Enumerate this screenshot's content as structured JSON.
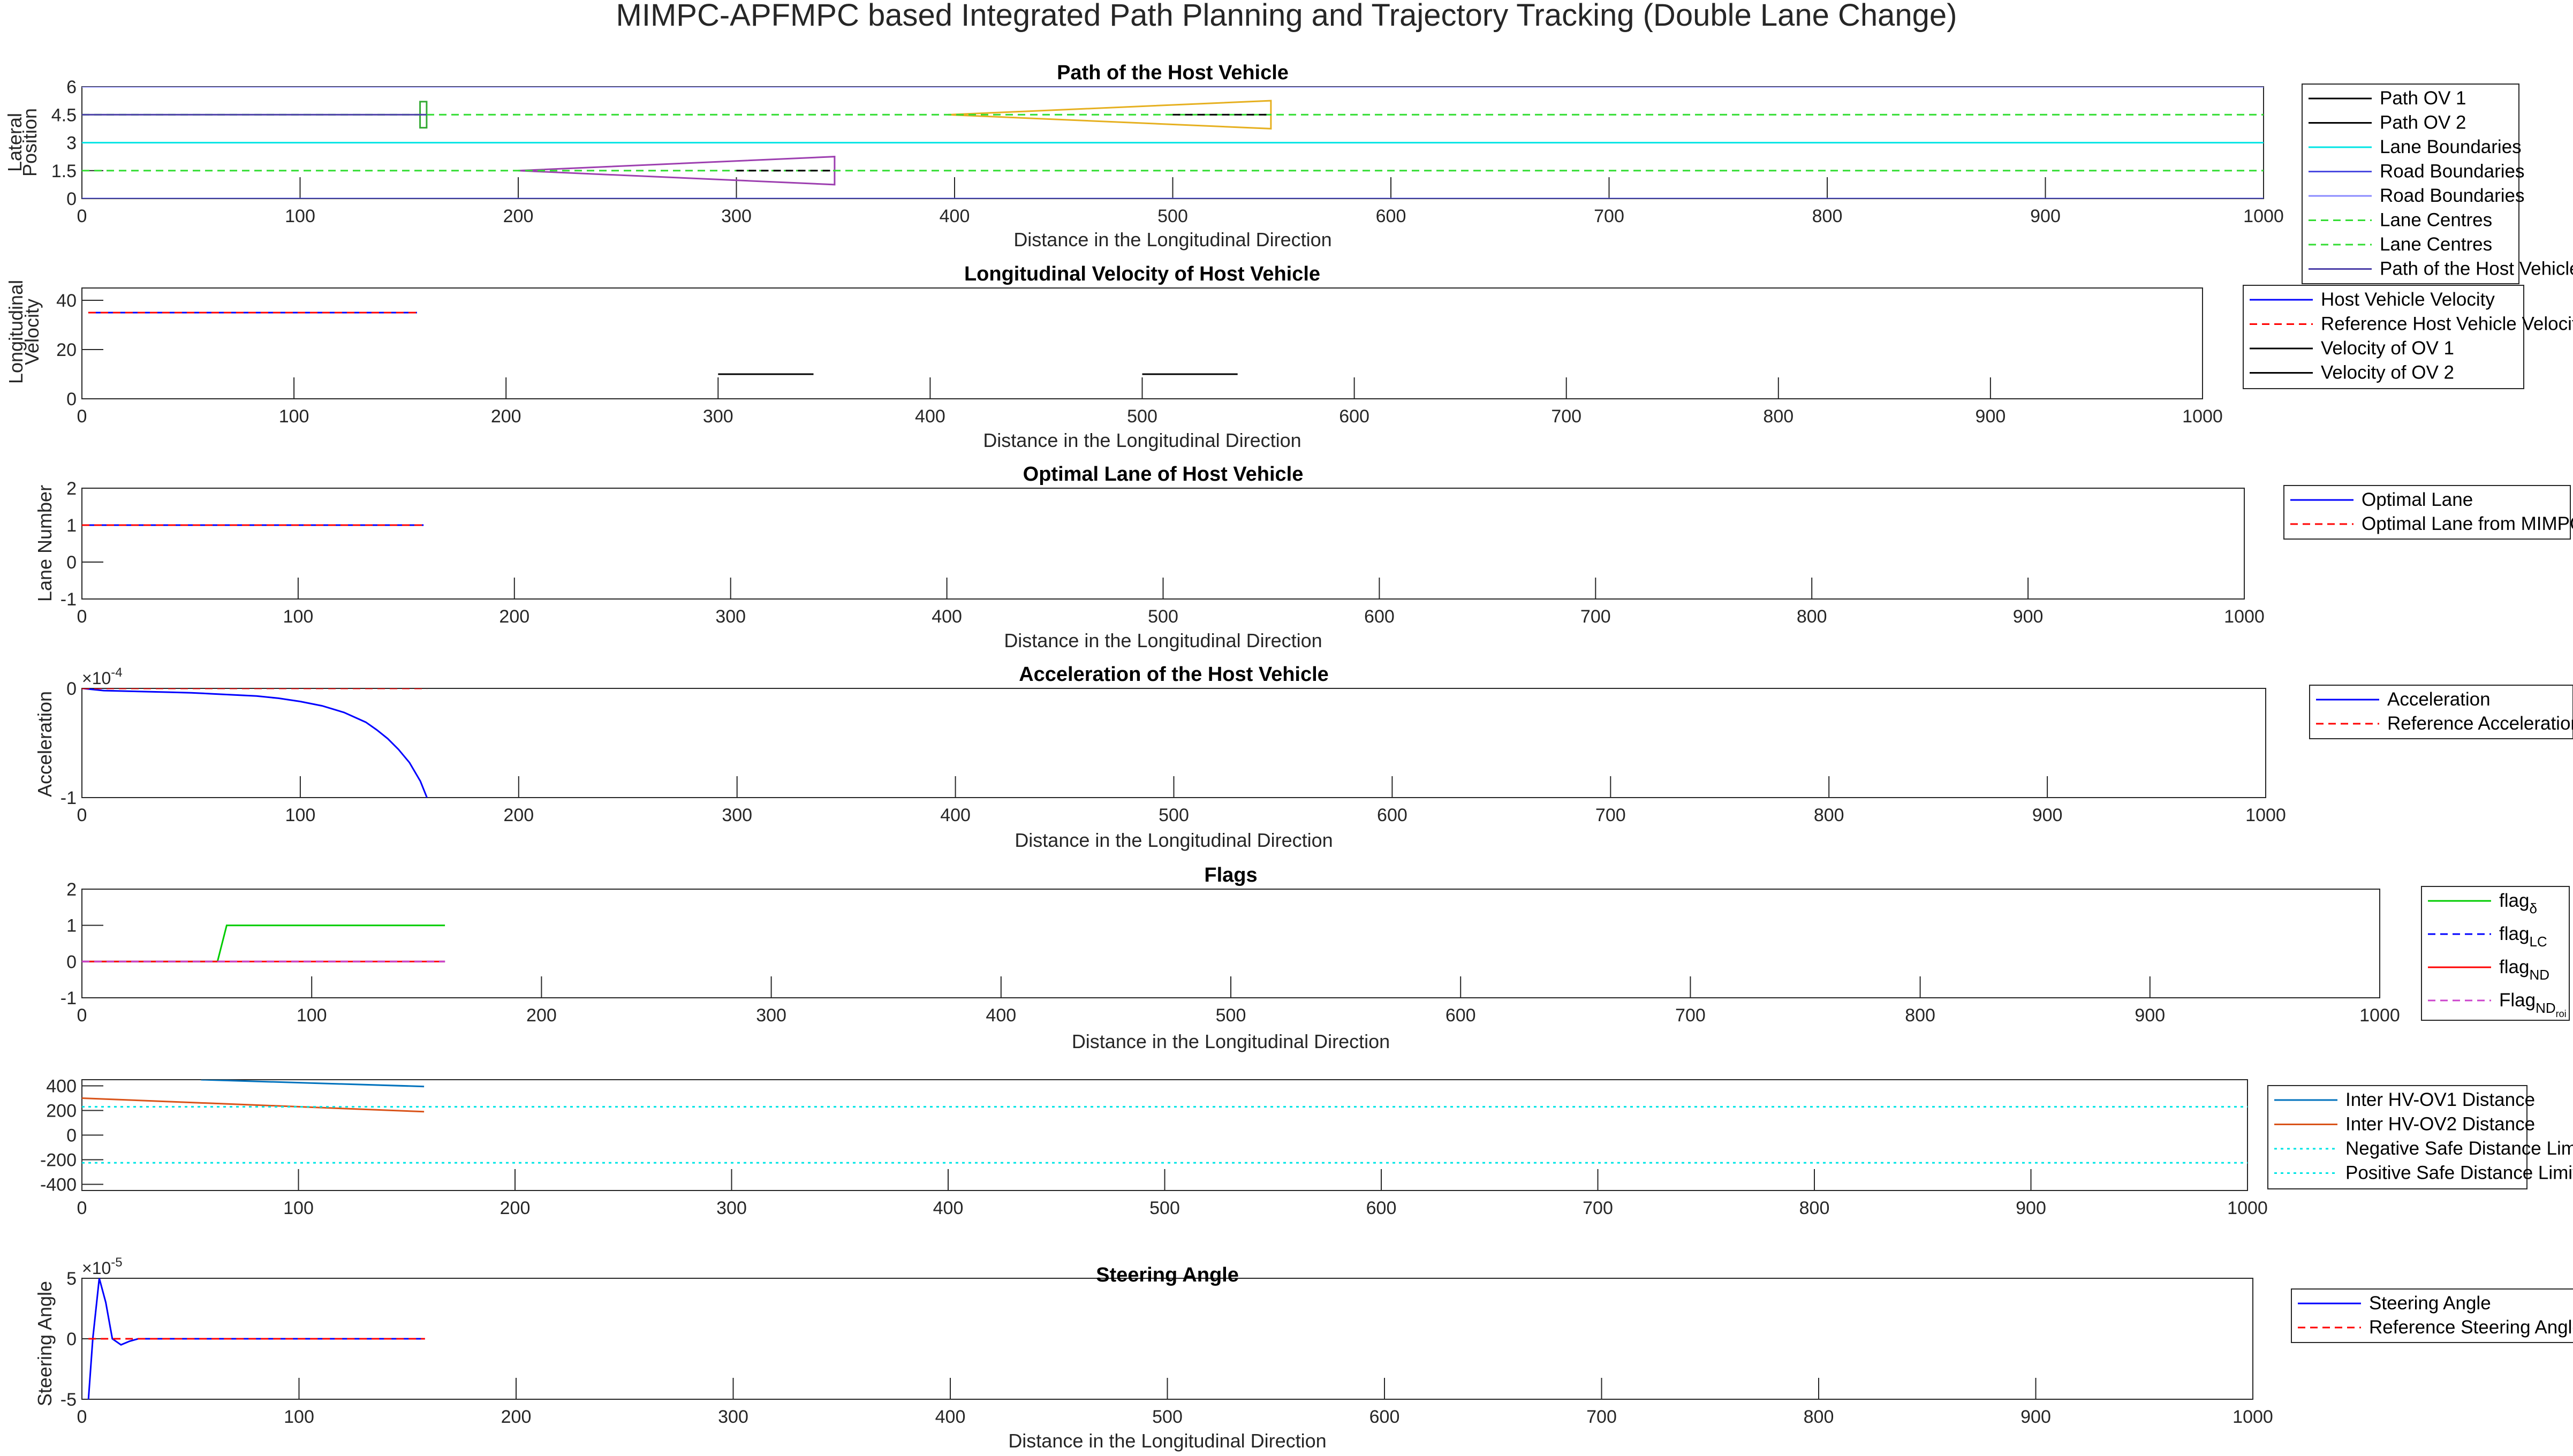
{
  "figure_title": "MIMPC-APFMPC based Integrated Path Planning and Trajectory Tracking (Double Lane Change)",
  "chart_data": [
    {
      "type": "line",
      "title": "Path of the Host Vehicle",
      "xlabel": "Distance in the Longitudinal Direction",
      "ylabel": [
        "Lateral",
        "Position"
      ],
      "xlim": [
        0,
        1000
      ],
      "ylim": [
        0,
        6
      ],
      "xticks": [
        0,
        100,
        200,
        300,
        400,
        500,
        600,
        700,
        800,
        900,
        1000
      ],
      "yticks": [
        0,
        1.5,
        3,
        4.5,
        6
      ],
      "ytick_labels": [
        "0",
        "1.5",
        "3",
        "4.5",
        "6"
      ],
      "legend_position": "right",
      "legend": [
        {
          "name": "Path OV 1",
          "color": "#000000",
          "dash": "solid"
        },
        {
          "name": "Path OV 2",
          "color": "#000000",
          "dash": "solid"
        },
        {
          "name": "Lane Boundaries",
          "color": "#00e5e5",
          "dash": "solid"
        },
        {
          "name": "Road Boundaries",
          "color": "#4a4ae0",
          "dash": "solid"
        },
        {
          "name": "Road Boundaries",
          "color": "#8a8aff",
          "dash": "solid"
        },
        {
          "name": "Lane Centres",
          "color": "#33dd33",
          "dash": "dashed"
        },
        {
          "name": "Lane Centres",
          "color": "#33dd33",
          "dash": "dashed"
        },
        {
          "name": "Path of the Host Vehicle",
          "color": "#4b3fa8",
          "dash": "solid"
        }
      ],
      "series": [
        {
          "name": "Road Boundaries",
          "color": "#8a8aff",
          "dash": "solid",
          "x": [
            0,
            1000
          ],
          "y": [
            6,
            6
          ]
        },
        {
          "name": "Road Boundaries",
          "color": "#4a4ae0",
          "dash": "solid",
          "x": [
            0,
            1000
          ],
          "y": [
            0,
            0
          ]
        },
        {
          "name": "Lane Boundaries",
          "color": "#00e5e5",
          "dash": "solid",
          "x": [
            0,
            1000
          ],
          "y": [
            3,
            3
          ]
        },
        {
          "name": "Lane Centres",
          "color": "#33dd33",
          "dash": "dashed",
          "x": [
            0,
            1000
          ],
          "y": [
            4.5,
            4.5
          ]
        },
        {
          "name": "Lane Centres",
          "color": "#33dd33",
          "dash": "dashed",
          "x": [
            0,
            1000
          ],
          "y": [
            1.5,
            1.5
          ]
        },
        {
          "name": "Path of the Host Vehicle",
          "color": "#4b3fa8",
          "dash": "solid",
          "x": [
            0,
            158
          ],
          "y": [
            4.5,
            4.5
          ]
        },
        {
          "name": "Path OV 1",
          "color": "#000000",
          "dash": "dashed",
          "x": [
            300,
            345
          ],
          "y": [
            1.5,
            1.5
          ]
        },
        {
          "name": "Path OV 2",
          "color": "#000000",
          "dash": "dashed",
          "x": [
            500,
            545
          ],
          "y": [
            4.5,
            4.5
          ]
        }
      ],
      "polygons": [
        {
          "color": "#33aa33",
          "x": [
            155,
            158,
            158,
            155
          ],
          "y": [
            3.8,
            3.8,
            5.2,
            5.2
          ]
        },
        {
          "color": "#9d3fb0",
          "x": [
            200,
            345,
            345
          ],
          "y": [
            1.5,
            0.75,
            2.25
          ]
        },
        {
          "color": "#e6b020",
          "x": [
            397,
            545,
            545
          ],
          "y": [
            4.5,
            3.75,
            5.25
          ]
        }
      ]
    },
    {
      "type": "line",
      "title": "Longitudinal Velocity of Host Vehicle",
      "xlabel": "Distance in the Longitudinal Direction",
      "ylabel": [
        "Longitudinal",
        "Velocity"
      ],
      "xlim": [
        0,
        1000
      ],
      "ylim": [
        0,
        45
      ],
      "xticks": [
        0,
        100,
        200,
        300,
        400,
        500,
        600,
        700,
        800,
        900,
        1000
      ],
      "yticks": [
        0,
        20,
        40
      ],
      "ytick_labels": [
        "0",
        "20",
        "40"
      ],
      "legend_position": "right",
      "legend": [
        {
          "name": "Host Vehicle Velocity",
          "color": "#0000ff",
          "dash": "solid"
        },
        {
          "name": "Reference Host Vehicle Velocity",
          "color": "#ff0000",
          "dash": "dashed"
        },
        {
          "name": "Velocity of OV 1",
          "color": "#000000",
          "dash": "solid"
        },
        {
          "name": "Velocity of OV 2",
          "color": "#000000",
          "dash": "solid"
        }
      ],
      "series": [
        {
          "name": "Host Vehicle Velocity",
          "color": "#0000ff",
          "dash": "solid",
          "x": [
            3,
            158
          ],
          "y": [
            35,
            35
          ]
        },
        {
          "name": "Reference Host Vehicle Velocity",
          "color": "#ff0000",
          "dash": "dashed",
          "x": [
            3,
            158
          ],
          "y": [
            35,
            35
          ]
        },
        {
          "name": "Velocity of OV 1",
          "color": "#000000",
          "dash": "solid",
          "x": [
            300,
            345
          ],
          "y": [
            10,
            10
          ]
        },
        {
          "name": "Velocity of OV 2",
          "color": "#000000",
          "dash": "solid",
          "x": [
            500,
            545
          ],
          "y": [
            10,
            10
          ]
        }
      ]
    },
    {
      "type": "line",
      "title": "Optimal Lane of Host Vehicle",
      "xlabel": "Distance in the Longitudinal Direction",
      "ylabel": [
        "Lane Number"
      ],
      "xlim": [
        0,
        1000
      ],
      "ylim": [
        -1,
        2
      ],
      "xticks": [
        0,
        100,
        200,
        300,
        400,
        500,
        600,
        700,
        800,
        900,
        1000
      ],
      "yticks": [
        -1,
        0,
        1,
        2
      ],
      "ytick_labels": [
        "-1",
        "0",
        "1",
        "2"
      ],
      "legend_position": "right",
      "legend": [
        {
          "name": "Optimal Lane",
          "color": "#0000ff",
          "dash": "solid"
        },
        {
          "name": "Optimal Lane from MIMPC",
          "color": "#ff0000",
          "dash": "dashed"
        }
      ],
      "series": [
        {
          "name": "Optimal Lane",
          "color": "#0000ff",
          "dash": "solid",
          "x": [
            0,
            158
          ],
          "y": [
            1,
            1
          ]
        },
        {
          "name": "Optimal Lane from MIMPC",
          "color": "#ff0000",
          "dash": "dashed",
          "x": [
            0,
            158
          ],
          "y": [
            1,
            1
          ]
        }
      ]
    },
    {
      "type": "line",
      "title": "Acceleration of the Host Vehicle",
      "xlabel": "Distance in the Longitudinal Direction",
      "ylabel": [
        "Acceleration"
      ],
      "exponent_label": "×10",
      "exponent_power": "-4",
      "xlim": [
        0,
        1000
      ],
      "ylim": [
        -1,
        0
      ],
      "xticks": [
        0,
        100,
        200,
        300,
        400,
        500,
        600,
        700,
        800,
        900,
        1000
      ],
      "yticks": [
        -1,
        0
      ],
      "ytick_labels": [
        "-1",
        "0"
      ],
      "legend_position": "right",
      "legend": [
        {
          "name": "Acceleration",
          "color": "#0000ff",
          "dash": "solid"
        },
        {
          "name": "Reference Acceleration",
          "color": "#ff0000",
          "dash": "dashed"
        }
      ],
      "series": [
        {
          "name": "Acceleration",
          "color": "#0000ff",
          "dash": "solid",
          "x": [
            0,
            10,
            20,
            30,
            40,
            50,
            60,
            70,
            80,
            90,
            100,
            110,
            120,
            130,
            135,
            140,
            145,
            150,
            155,
            158
          ],
          "y": [
            0,
            -0.02,
            -0.025,
            -0.03,
            -0.035,
            -0.04,
            -0.05,
            -0.06,
            -0.07,
            -0.09,
            -0.12,
            -0.16,
            -0.22,
            -0.31,
            -0.38,
            -0.46,
            -0.56,
            -0.68,
            -0.85,
            -1.0
          ]
        },
        {
          "name": "Reference Acceleration",
          "color": "#ff0000",
          "dash": "dashed",
          "x": [
            0,
            158
          ],
          "y": [
            0,
            0
          ]
        }
      ]
    },
    {
      "type": "line",
      "title": "Flags",
      "xlabel": "Distance in the Longitudinal Direction",
      "ylabel": [],
      "xlim": [
        0,
        1000
      ],
      "ylim": [
        -1,
        2
      ],
      "xticks": [
        0,
        100,
        200,
        300,
        400,
        500,
        600,
        700,
        800,
        900,
        1000
      ],
      "yticks": [
        -1,
        0,
        1,
        2
      ],
      "ytick_labels": [
        "-1",
        "0",
        "1",
        "2"
      ],
      "legend_position": "right",
      "legend": [
        {
          "name": "flag",
          "sub": "δ",
          "color": "#00cc00",
          "dash": "solid"
        },
        {
          "name": "flag",
          "sub": "LC",
          "color": "#0000ff",
          "dash": "dashed"
        },
        {
          "name": "flag",
          "sub": "ND",
          "color": "#ff0000",
          "dash": "solid"
        },
        {
          "name": "Flag",
          "sub": "ND",
          "sub2": "roi",
          "color": "#cc44cc",
          "dash": "dashed"
        }
      ],
      "series": [
        {
          "name": "flag δ",
          "color": "#00cc00",
          "dash": "solid",
          "x": [
            0,
            59,
            63,
            158
          ],
          "y": [
            0,
            0,
            1,
            1
          ]
        },
        {
          "name": "flag LC",
          "color": "#0000ff",
          "dash": "dashed",
          "x": [
            0,
            158
          ],
          "y": [
            0,
            0
          ]
        },
        {
          "name": "flag ND",
          "color": "#ff0000",
          "dash": "solid",
          "x": [
            0,
            158
          ],
          "y": [
            0,
            0
          ]
        },
        {
          "name": "Flag ND roi",
          "color": "#cc44cc",
          "dash": "dashed",
          "x": [
            0,
            158
          ],
          "y": [
            0,
            0
          ]
        }
      ]
    },
    {
      "type": "line",
      "title": "",
      "xlabel": "",
      "ylabel": [],
      "xlim": [
        0,
        1000
      ],
      "ylim": [
        -450,
        450
      ],
      "xticks": [
        0,
        100,
        200,
        300,
        400,
        500,
        600,
        700,
        800,
        900,
        1000
      ],
      "yticks": [
        -400,
        -200,
        0,
        200,
        400
      ],
      "ytick_labels": [
        "-400",
        "-200",
        "0",
        "200",
        "400"
      ],
      "legend_position": "right",
      "legend": [
        {
          "name": "Inter HV-OV1 Distance",
          "color": "#0072bd",
          "dash": "solid"
        },
        {
          "name": "Inter HV-OV2 Distance",
          "color": "#d95319",
          "dash": "solid"
        },
        {
          "name": "Negative Safe Distance Limit",
          "color": "#00e5e5",
          "dash": "dotted"
        },
        {
          "name": "Positive Safe Distance Limit",
          "color": "#00e5e5",
          "dash": "dotted"
        }
      ],
      "series": [
        {
          "name": "Inter HV-OV1 Distance",
          "color": "#0072bd",
          "dash": "solid",
          "x": [
            55,
            158
          ],
          "y": [
            450,
            395
          ]
        },
        {
          "name": "Inter HV-OV2 Distance",
          "color": "#d95319",
          "dash": "solid",
          "x": [
            0,
            158
          ],
          "y": [
            300,
            190
          ]
        },
        {
          "name": "Negative Safe Distance Limit",
          "color": "#00e5e5",
          "dash": "dotted",
          "x": [
            0,
            1000
          ],
          "y": [
            -225,
            -225
          ]
        },
        {
          "name": "Positive Safe Distance Limit",
          "color": "#00e5e5",
          "dash": "dotted",
          "x": [
            0,
            1000
          ],
          "y": [
            230,
            230
          ]
        }
      ]
    },
    {
      "type": "line",
      "title": "Steering Angle",
      "xlabel": "Distance in the Longitudinal Direction",
      "ylabel": [
        "Steering Angle"
      ],
      "exponent_label": "×10",
      "exponent_power": "-5",
      "xlim": [
        0,
        1000
      ],
      "ylim": [
        -5,
        5
      ],
      "xticks": [
        0,
        100,
        200,
        300,
        400,
        500,
        600,
        700,
        800,
        900,
        1000
      ],
      "yticks": [
        -5,
        0,
        5
      ],
      "ytick_labels": [
        "-5",
        "0",
        "5"
      ],
      "legend_position": "right",
      "legend": [
        {
          "name": "Steering Angle",
          "color": "#0000ff",
          "dash": "solid"
        },
        {
          "name": "Reference Steering Angle",
          "color": "#ff0000",
          "dash": "dashed"
        }
      ],
      "series": [
        {
          "name": "Steering Angle",
          "color": "#0000ff",
          "dash": "solid",
          "x": [
            3,
            5,
            8,
            11,
            14,
            18,
            22,
            26,
            30,
            158
          ],
          "y": [
            -5,
            0,
            5,
            3,
            0,
            -0.5,
            -0.2,
            0,
            0,
            0
          ]
        },
        {
          "name": "Reference Steering Angle",
          "color": "#ff0000",
          "dash": "dashed",
          "x": [
            3,
            158
          ],
          "y": [
            0,
            0
          ]
        }
      ]
    }
  ]
}
